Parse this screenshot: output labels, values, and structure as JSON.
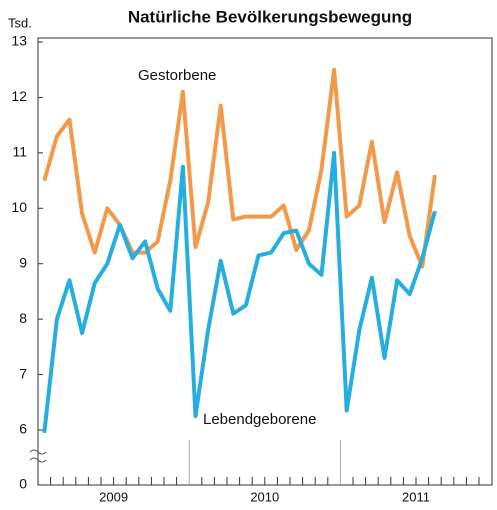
{
  "chart_data": {
    "type": "line",
    "title": "Natürliche Bevölkerungsbewegung",
    "y_label": "Tsd.",
    "years": [
      "2009",
      "2010",
      "2011"
    ],
    "series": [
      {
        "name": "Gestorbene",
        "color": "#f39a4a",
        "values": [
          10.5,
          11.3,
          11.6,
          9.9,
          9.2,
          10.0,
          9.7,
          9.2,
          9.2,
          9.4,
          10.5,
          12.1,
          9.3,
          10.1,
          11.85,
          9.8,
          9.85,
          9.85,
          9.85,
          10.05,
          9.25,
          9.6,
          10.7,
          12.5,
          9.85,
          10.05,
          11.2,
          9.75,
          10.65,
          9.5,
          8.95,
          10.6
        ]
      },
      {
        "name": "Lebendgeborene",
        "color": "#27aee0",
        "values": [
          5.95,
          8.0,
          8.7,
          7.75,
          8.65,
          9.0,
          9.7,
          9.1,
          9.4,
          8.55,
          8.15,
          10.75,
          6.25,
          7.8,
          9.05,
          8.1,
          8.25,
          9.15,
          9.2,
          9.55,
          9.6,
          9.0,
          8.8,
          11.0,
          6.35,
          7.8,
          8.75,
          7.3,
          8.7,
          8.45,
          9.1,
          9.95
        ]
      }
    ],
    "ylim": [
      0,
      13
    ],
    "axis_break": [
      0,
      6
    ],
    "yticks": [
      0,
      6,
      7,
      8,
      9,
      10,
      11,
      12,
      13
    ],
    "grid": false
  }
}
